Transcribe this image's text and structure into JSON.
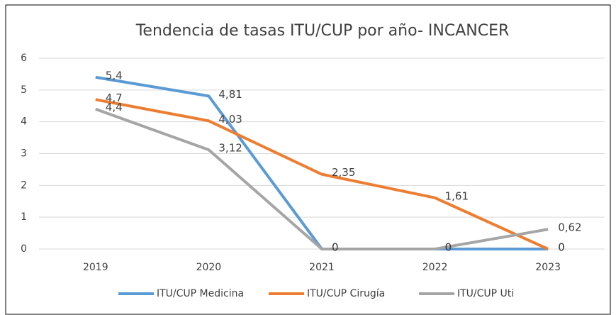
{
  "chart_data": {
    "type": "line",
    "title": "Tendencia de tasas ITU/CUP por año- INCANCER",
    "categories": [
      "2019",
      "2020",
      "2021",
      "2022",
      "2023"
    ],
    "series": [
      {
        "name": "ITU/CUP Medicina",
        "color": "#5b9bd5",
        "values": [
          5.4,
          4.81,
          0,
          0,
          0
        ],
        "value_labels": [
          "5,4",
          "4,81",
          "0",
          "0",
          "0"
        ]
      },
      {
        "name": "ITU/CUP Cirugía",
        "color": "#ed7d31",
        "values": [
          4.7,
          4.03,
          2.35,
          1.61,
          0
        ],
        "value_labels": [
          "4,7",
          "4,03",
          "2,35",
          "1,61",
          "0"
        ]
      },
      {
        "name": "ITU/CUP Uti",
        "color": "#a5a5a5",
        "values": [
          4.4,
          3.12,
          0,
          0,
          0.62
        ],
        "value_labels": [
          "4,4",
          "3,12",
          "0",
          "0",
          "0,62"
        ]
      }
    ],
    "ylim": [
      0,
      6
    ],
    "yticks": [
      0,
      1,
      2,
      3,
      4,
      5,
      6
    ],
    "grid": true,
    "legend": "bottom"
  }
}
